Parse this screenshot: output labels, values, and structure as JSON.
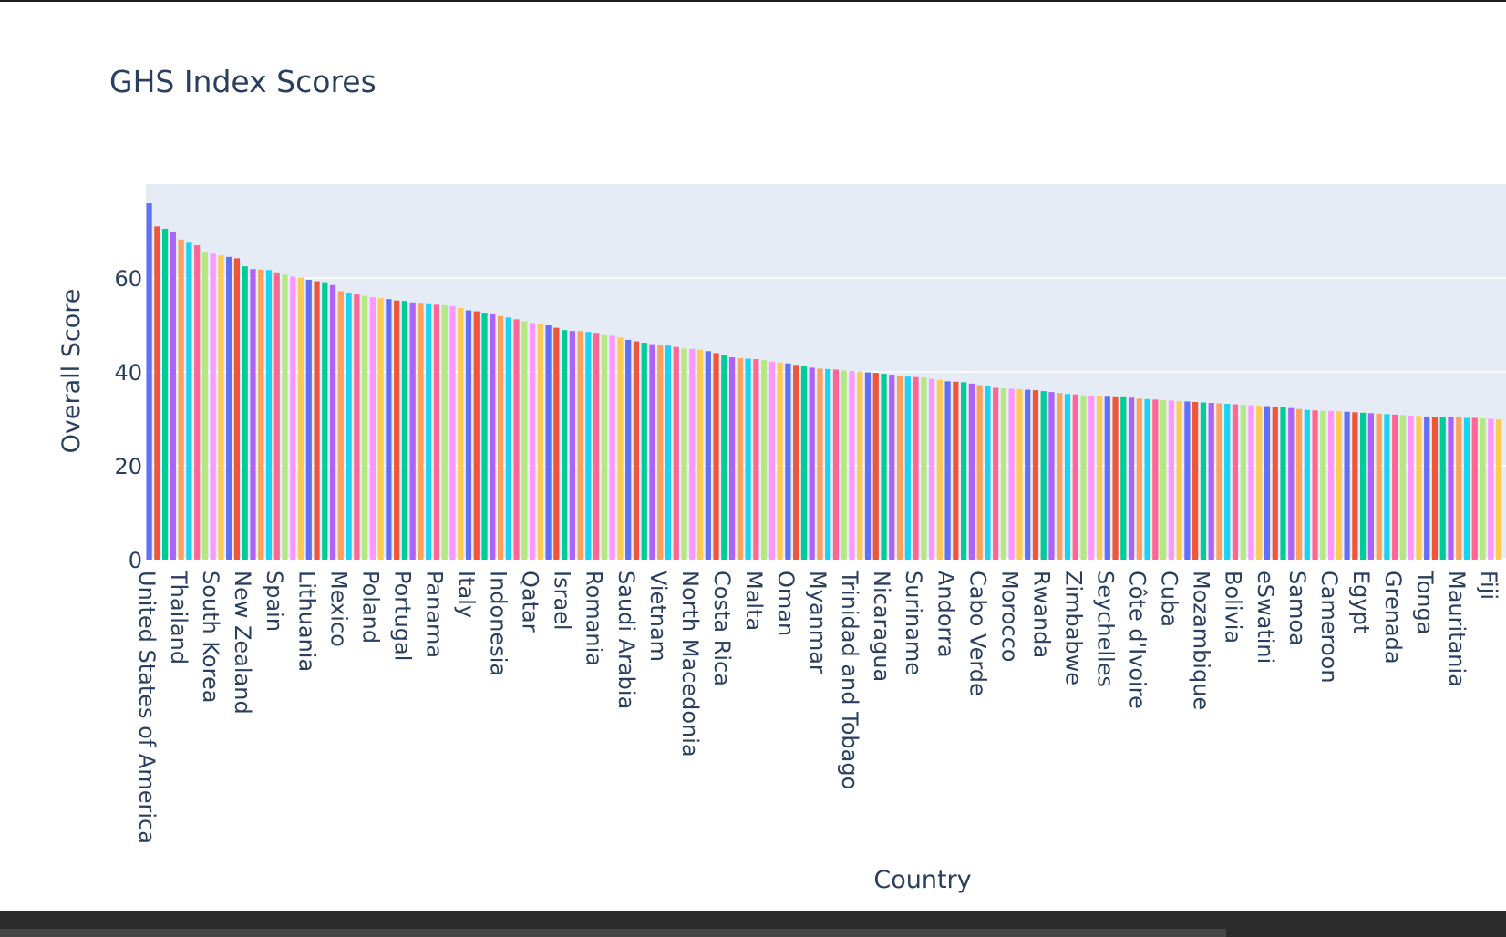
{
  "chart_data": {
    "type": "bar",
    "title": "GHS Index Scores",
    "xlabel": "Country",
    "ylabel": "Overall Score",
    "ylim": [
      0,
      80
    ],
    "yticks": [
      0,
      20,
      40,
      60
    ],
    "grid": true,
    "legend": "none",
    "colors": [
      "#636efa",
      "#EF553B",
      "#00cc96",
      "#ab63fa",
      "#FFA15A",
      "#19d3f3",
      "#FF6692",
      "#B6E880",
      "#FF97FF",
      "#FECB52"
    ],
    "plot_background": "#e5ecf6",
    "categories": [
      "United States of America",
      "Thailand",
      "South Korea",
      "New Zealand",
      "Spain",
      "Lithuania",
      "Mexico",
      "Poland",
      "Portugal",
      "Panama",
      "Italy",
      "Indonesia",
      "Qatar",
      "Israel",
      "Romania",
      "Saudi Arabia",
      "Vietnam",
      "North Macedonia",
      "Costa Rica",
      "Malta",
      "Oman",
      "Myanmar",
      "Trinidad and Tobago",
      "Nicaragua",
      "Suriname",
      "Andorra",
      "Cabo Verde",
      "Morocco",
      "Rwanda",
      "Zimbabwe",
      "Seychelles",
      "Côte d'Ivoire",
      "Cuba",
      "Mozambique",
      "Bolivia",
      "eSwatini",
      "Samoa",
      "Cameroon",
      "Egypt",
      "Grenada",
      "Tonga",
      "Mauritania",
      "Fiji"
    ],
    "values": [
      75.9,
      68.2,
      65.4,
      62.5,
      61.2,
      59.6,
      57.2,
      55.5,
      54.7,
      53.6,
      51.9,
      50.4,
      48.9,
      47.3,
      45.8,
      44.9,
      43.1,
      42.0,
      40.7,
      40.1,
      39.1,
      38.0,
      36.6,
      36.1,
      35.0,
      34.6,
      34.0,
      33.5,
      33.1,
      32.5,
      31.7,
      31.1,
      30.4,
      30.2,
      29.8,
      29.1,
      28.8,
      28.5,
      28.1,
      27.2,
      26.4,
      26.0,
      25.7
    ],
    "visible_bars": [
      75.9,
      71.0,
      70.5,
      69.8,
      68.2,
      67.5,
      67.0,
      65.4,
      65.2,
      64.8,
      64.5,
      64.2,
      62.5,
      61.9,
      61.8,
      61.7,
      61.2,
      60.7,
      60.3,
      60.1,
      59.6,
      59.3,
      59.1,
      58.5,
      57.2,
      56.8,
      56.5,
      56.2,
      55.9,
      55.7,
      55.5,
      55.2,
      55.1,
      54.8,
      54.7,
      54.6,
      54.3,
      54.2,
      54.0,
      53.6,
      53.1,
      52.9,
      52.6,
      52.4,
      51.9,
      51.6,
      51.2,
      50.8,
      50.4,
      50.2,
      49.9,
      49.4,
      48.9,
      48.7,
      48.7,
      48.5,
      48.3,
      48.0,
      47.7,
      47.3,
      46.8,
      46.5,
      46.2,
      45.9,
      45.8,
      45.6,
      45.3,
      45.0,
      44.9,
      44.7,
      44.4,
      44.0,
      43.5,
      43.1,
      42.9,
      42.8,
      42.7,
      42.5,
      42.2,
      42.0,
      41.8,
      41.5,
      41.2,
      40.9,
      40.7,
      40.6,
      40.5,
      40.3,
      40.2,
      40.1,
      39.9,
      39.8,
      39.6,
      39.4,
      39.1,
      39.0,
      38.9,
      38.8,
      38.5,
      38.3,
      38.0,
      37.9,
      37.8,
      37.5,
      37.2,
      36.9,
      36.6,
      36.5,
      36.4,
      36.3,
      36.2,
      36.1,
      35.9,
      35.7,
      35.5,
      35.3,
      35.2,
      35.0,
      34.9,
      34.8,
      34.7,
      34.6,
      34.6,
      34.5,
      34.3,
      34.2,
      34.1,
      34.0,
      33.9,
      33.8,
      33.7,
      33.6,
      33.5,
      33.4,
      33.3,
      33.2,
      33.1,
      33.0,
      32.9,
      32.8,
      32.7,
      32.6,
      32.5,
      32.3,
      32.1,
      31.9,
      31.8,
      31.7,
      31.7,
      31.6,
      31.5,
      31.4,
      31.3,
      31.2,
      31.1,
      31.0,
      30.9,
      30.8,
      30.7,
      30.6,
      30.5,
      30.4,
      30.4,
      30.3,
      30.3,
      30.2,
      30.2,
      30.1,
      30.0,
      29.9,
      29.8,
      29.8,
      29.7,
      29.6,
      29.5,
      29.4,
      29.2,
      29.1,
      29.0,
      28.9,
      28.9,
      28.8,
      28.8,
      28.7,
      28.6,
      28.6,
      28.5,
      28.5,
      28.4,
      28.3,
      28.2,
      28.1,
      28.0,
      27.8,
      27.6,
      27.4,
      27.2,
      27.0,
      26.8,
      26.7,
      26.6,
      26.5,
      26.4,
      26.3,
      26.2,
      26.1,
      26.1,
      26.0,
      26.0,
      26.0,
      25.9,
      25.8,
      25.7,
      25.6,
      25.5,
      25.4
    ]
  }
}
